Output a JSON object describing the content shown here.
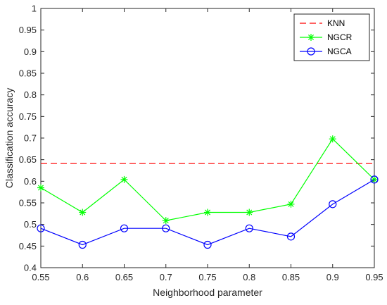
{
  "chart_data": {
    "type": "line",
    "xlabel": "Neighborhood parameter",
    "ylabel": "Classification accuracy",
    "xlim": [
      0.55,
      0.95
    ],
    "ylim": [
      0.4,
      1
    ],
    "xticks": [
      "0.55",
      "0.6",
      "0.65",
      "0.7",
      "0.75",
      "0.8",
      "0.85",
      "0.9",
      "0.95"
    ],
    "yticks": [
      "0.4",
      "0.45",
      "0.5",
      "0.55",
      "0.6",
      "0.65",
      "0.7",
      "0.75",
      "0.8",
      "0.85",
      "0.9",
      "0.95",
      "1"
    ],
    "grid": false,
    "legend_position": "top-right",
    "x": [
      0.55,
      0.6,
      0.65,
      0.7,
      0.75,
      0.8,
      0.85,
      0.9,
      0.95
    ],
    "series": [
      {
        "name": "KNN",
        "style": "dashed",
        "marker": "none",
        "color": "#ff0000",
        "values": [
          0.641,
          0.641,
          0.641,
          0.641,
          0.641,
          0.641,
          0.641,
          0.641,
          0.641
        ]
      },
      {
        "name": "NGCR",
        "style": "solid",
        "marker": "star",
        "color": "#00ff00",
        "values": [
          0.585,
          0.528,
          0.604,
          0.509,
          0.528,
          0.528,
          0.547,
          0.698,
          0.604
        ]
      },
      {
        "name": "NGCA",
        "style": "solid",
        "marker": "circle",
        "color": "#0000ff",
        "values": [
          0.491,
          0.453,
          0.491,
          0.491,
          0.453,
          0.491,
          0.472,
          0.547,
          0.604
        ]
      }
    ]
  }
}
